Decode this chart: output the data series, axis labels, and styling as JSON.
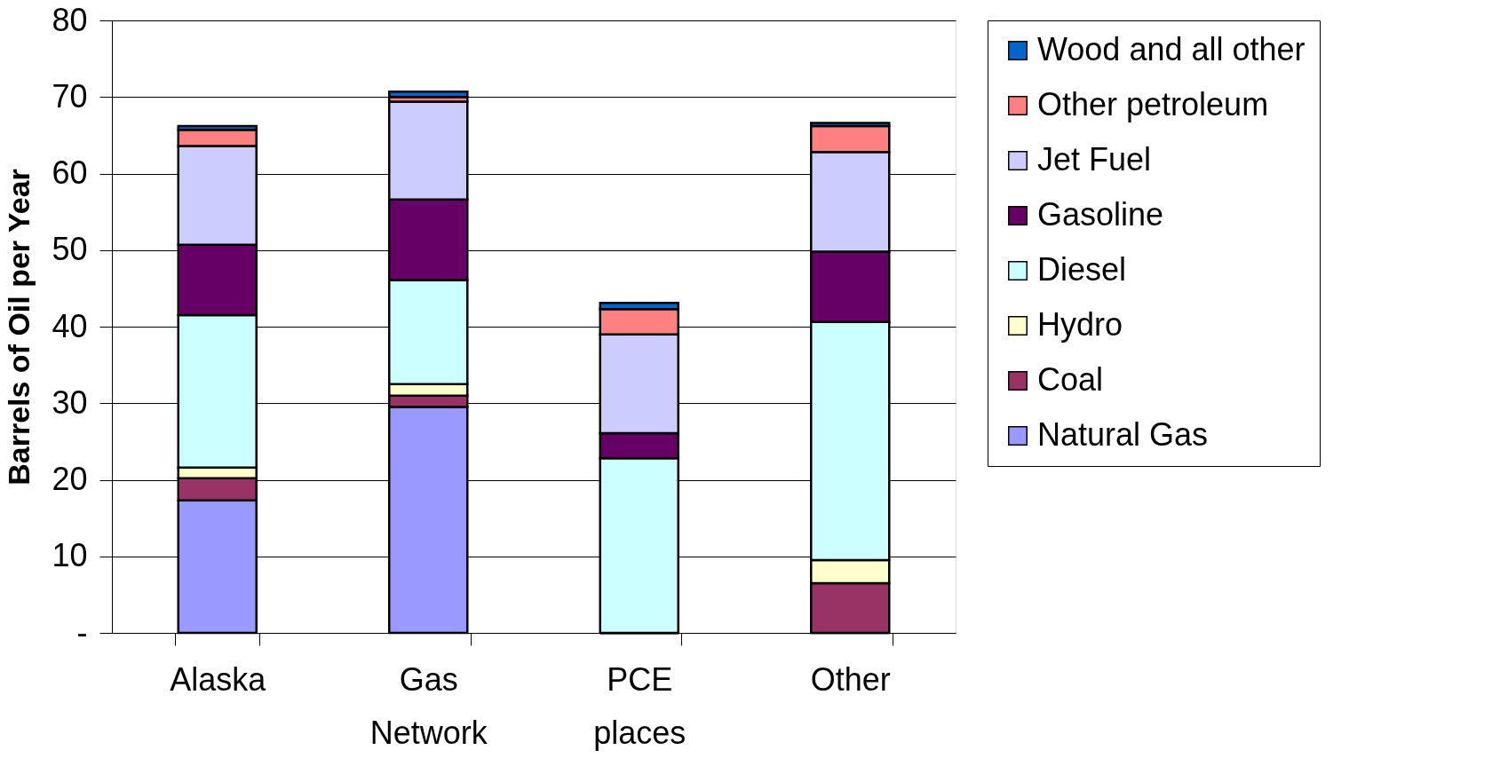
{
  "chart_data": {
    "type": "bar",
    "stacked": true,
    "ylabel": "Barrels of Oil per Year",
    "categories": [
      "Alaska",
      "Gas Network",
      "PCE places",
      "Other"
    ],
    "series": [
      {
        "name": "Natural Gas",
        "color": "#9999ff",
        "values": [
          17.3,
          29.5,
          0,
          0
        ]
      },
      {
        "name": "Coal",
        "color": "#993366",
        "values": [
          2.9,
          1.5,
          0,
          6.5
        ]
      },
      {
        "name": "Hydro",
        "color": "#ffffcc",
        "values": [
          1.4,
          1.5,
          0,
          3.0
        ]
      },
      {
        "name": "Diesel",
        "color": "#ccffff",
        "values": [
          19.9,
          13.6,
          22.8,
          31.1
        ]
      },
      {
        "name": "Gasoline",
        "color": "#660066",
        "values": [
          9.2,
          10.5,
          3.3,
          9.2
        ]
      },
      {
        "name": "Jet Fuel",
        "color": "#ccccff",
        "values": [
          12.9,
          12.8,
          12.9,
          13.0
        ]
      },
      {
        "name": "Other petroleum",
        "color": "#ff8080",
        "values": [
          2.1,
          0.6,
          3.3,
          3.4
        ]
      },
      {
        "name": "Wood and all other",
        "color": "#0066cc",
        "values": [
          0.5,
          0.7,
          0.8,
          0.4
        ]
      }
    ],
    "ylim": [
      0,
      80
    ],
    "yticks": [
      {
        "value": 0,
        "label": "-"
      },
      10,
      20,
      30,
      40,
      50,
      60,
      70,
      80
    ],
    "grid": "y",
    "legend": "right"
  }
}
